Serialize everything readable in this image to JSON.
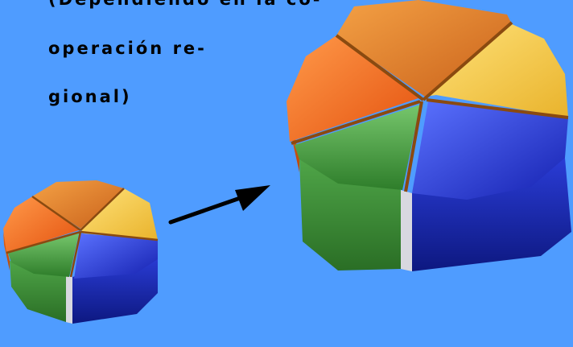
{
  "slide": {
    "caption_lines": [
      "(Dependiendo en la co-",
      "operación re-",
      "gional)"
    ],
    "background_color": "#4f9cff",
    "text_color": "#000000"
  },
  "pie_charts": {
    "small": {
      "slice_colors": [
        "#e87a2a",
        "#f7c84a",
        "#2133d6",
        "#3f9c3a",
        "#f76c1f"
      ]
    },
    "large": {
      "slice_colors": [
        "#e87a2a",
        "#f7c84a",
        "#2133d6",
        "#3f9c3a",
        "#f76c1f"
      ]
    }
  },
  "arrow": {
    "direction": "up-right",
    "color": "#000000"
  }
}
